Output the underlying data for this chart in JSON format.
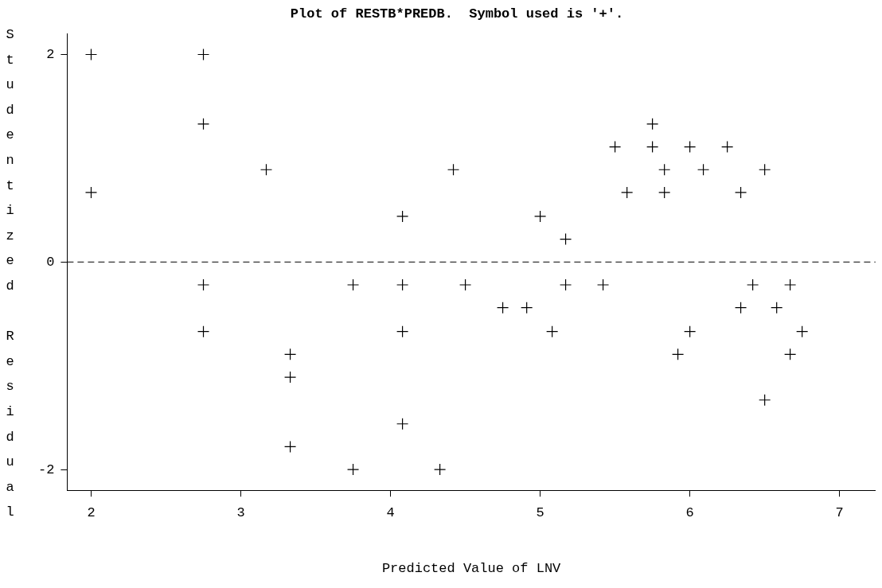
{
  "chart_data": {
    "type": "scatter",
    "title": "Plot of RESTB*PREDB.  Symbol used is '+'.",
    "xlabel": "Predicted Value of LNV",
    "ylabel": "Studentized Residual",
    "x": [
      2,
      2.75,
      2.75,
      5.75,
      5.5,
      5.75,
      6,
      6.25,
      3.17,
      4.42,
      5.83,
      6.09,
      6.5,
      2,
      5.58,
      5.83,
      6.34,
      4.08,
      5,
      5.17,
      2.75,
      3.75,
      4.08,
      4.5,
      5.17,
      5.42,
      6.42,
      6.67,
      4.75,
      4.91,
      6.34,
      6.58,
      2.75,
      4.08,
      5.08,
      6,
      6.75,
      3.33,
      5.92,
      6.67,
      3.33,
      6.5,
      4.08,
      3.33,
      3.75,
      4.33
    ],
    "values": [
      2,
      2,
      1.33,
      1.33,
      1.11,
      1.11,
      1.11,
      1.11,
      0.89,
      0.89,
      0.89,
      0.89,
      0.89,
      0.67,
      0.67,
      0.67,
      0.67,
      0.44,
      0.44,
      0.22,
      -0.22,
      -0.22,
      -0.22,
      -0.22,
      -0.22,
      -0.22,
      -0.22,
      -0.22,
      -0.44,
      -0.44,
      -0.44,
      -0.44,
      -0.67,
      -0.67,
      -0.67,
      -0.67,
      -0.67,
      -0.89,
      -0.89,
      -0.89,
      -1.11,
      -1.33,
      -1.56,
      -1.78,
      -2,
      -2
    ],
    "color": "#000000",
    "marker": "cross",
    "grid": false,
    "legend": false,
    "xlim": [
      1.84,
      7.24
    ],
    "xticks": [
      2,
      3,
      4,
      5,
      6,
      7
    ],
    "ylim": [
      -2.2,
      2.2
    ],
    "yticks": [
      -2,
      0,
      2
    ],
    "ref_lines": [
      {
        "axis": "y",
        "value": 0,
        "line_style": "dashed",
        "color": "#000000"
      }
    ]
  }
}
